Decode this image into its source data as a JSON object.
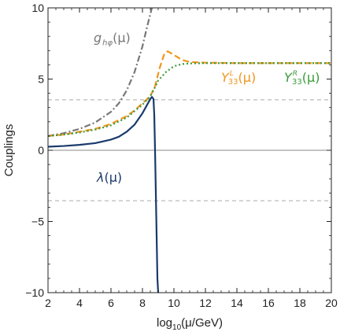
{
  "chart_data": {
    "type": "line",
    "title": "",
    "xlabel": "log10(μ/GeV)",
    "ylabel": "Couplings",
    "xlim": [
      2,
      20
    ],
    "ylim": [
      -10,
      10
    ],
    "x_ticks": [
      2,
      4,
      6,
      8,
      10,
      12,
      14,
      16,
      18,
      20
    ],
    "y_ticks": [
      -10,
      -5,
      0,
      5,
      10
    ],
    "x_tick_labels": [
      "2",
      "4",
      "6",
      "8",
      "10",
      "12",
      "14",
      "16",
      "18",
      "20"
    ],
    "y_tick_labels": [
      "−10",
      "−5",
      "0",
      "5",
      "10"
    ],
    "grid": false,
    "reference_lines": [
      {
        "y": 0,
        "style": "solid",
        "color": "#888888"
      },
      {
        "y": 3.54,
        "style": "dashed",
        "color": "#aaaaaa"
      },
      {
        "y": -3.54,
        "style": "dashed",
        "color": "#aaaaaa"
      }
    ],
    "series": [
      {
        "name": "g_hφ(μ)",
        "label_base": "g",
        "label_sub": "hφ",
        "label_arg": "(μ)",
        "color": "#777777",
        "style": "dash-dot",
        "x": [
          2,
          3,
          4,
          5,
          6,
          6.5,
          7,
          7.5,
          8,
          8.3,
          8.6
        ],
        "y": [
          1.0,
          1.2,
          1.5,
          1.95,
          2.7,
          3.3,
          4.2,
          5.5,
          7.3,
          8.7,
          10
        ]
      },
      {
        "name": "Y^L_33(μ)",
        "label_base": "Y",
        "label_sup": "L",
        "label_sub": "33",
        "label_arg": "(μ)",
        "color": "#f0961e",
        "style": "dashed",
        "x": [
          2,
          3,
          4,
          5,
          6,
          7,
          7.5,
          8,
          8.5,
          8.8,
          9.1,
          9.4,
          9.6,
          10,
          10.5,
          11,
          12,
          14,
          16,
          18,
          20
        ],
        "y": [
          1.0,
          1.1,
          1.3,
          1.5,
          1.85,
          2.4,
          2.8,
          3.3,
          3.8,
          4.5,
          5.8,
          6.8,
          6.95,
          6.7,
          6.35,
          6.2,
          6.15,
          6.12,
          6.12,
          6.12,
          6.12
        ]
      },
      {
        "name": "Y^R_33(μ)",
        "label_base": "Y",
        "label_sup": "R",
        "label_sub": "33",
        "label_arg": "(μ)",
        "color": "#3a9a3a",
        "style": "dotted",
        "x": [
          2,
          3,
          4,
          5,
          6,
          7,
          8,
          8.5,
          8.7,
          9,
          9.5,
          10,
          10.5,
          11,
          12,
          14,
          16,
          18,
          20
        ],
        "y": [
          1.0,
          1.1,
          1.25,
          1.45,
          1.75,
          2.3,
          3.2,
          3.8,
          4.2,
          4.9,
          5.5,
          5.9,
          6.05,
          6.1,
          6.12,
          6.12,
          6.12,
          6.12,
          6.12
        ]
      },
      {
        "name": "λ(μ)",
        "label_base": "λ",
        "label_arg": "(μ)",
        "color": "#1a3a6b",
        "style": "solid",
        "x": [
          2,
          3,
          4,
          5,
          6,
          6.5,
          7,
          7.5,
          8,
          8.3,
          8.5,
          8.6,
          8.7,
          8.75,
          8.8,
          8.85,
          8.9,
          8.95,
          9.0
        ],
        "y": [
          0.25,
          0.3,
          0.38,
          0.5,
          0.75,
          0.95,
          1.3,
          1.8,
          2.6,
          3.2,
          3.6,
          3.75,
          3.6,
          2.5,
          0,
          -3,
          -6,
          -9,
          -10
        ]
      }
    ]
  }
}
